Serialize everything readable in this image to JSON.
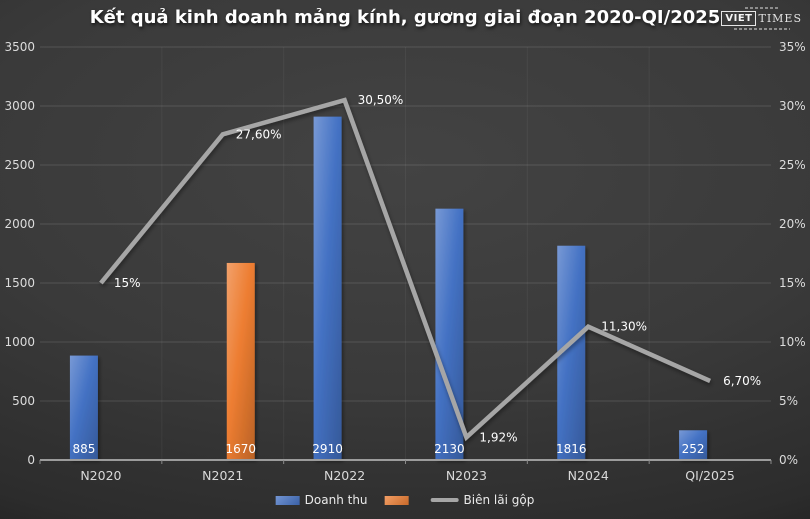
{
  "chart_data": {
    "type": "combo-bar-line",
    "title": "Kết quả kinh doanh mảng kính, gương giai đoạn 2020-QI/2025",
    "categories": [
      "N2020",
      "N2021",
      "N2022",
      "N2023",
      "N2024",
      "QI/2025"
    ],
    "series": [
      {
        "name": "Doanh thu",
        "type": "bar",
        "axis": "left",
        "color": "#4472c4",
        "values": [
          885,
          null,
          2910,
          2130,
          1816,
          252
        ],
        "labels": [
          "885",
          null,
          "2910",
          "2130",
          "1816",
          "252"
        ]
      },
      {
        "name": "",
        "type": "bar",
        "axis": "left",
        "color": "#ed7d31",
        "values": [
          null,
          1670,
          null,
          null,
          null,
          null
        ],
        "labels": [
          null,
          "1670",
          null,
          null,
          null,
          null
        ]
      },
      {
        "name": "Biên lãi gộp",
        "type": "line",
        "axis": "right",
        "color": "#a6a6a6",
        "values": [
          15,
          27.6,
          30.5,
          1.92,
          11.3,
          6.7
        ],
        "labels": [
          "15%",
          "27,60%",
          "30,50%",
          "1,92%",
          "11,30%",
          "6,70%"
        ]
      }
    ],
    "left_axis": {
      "min": 0,
      "max": 3500,
      "step": 500,
      "ticks": [
        "0",
        "500",
        "1000",
        "1500",
        "2000",
        "2500",
        "3000",
        "3500"
      ]
    },
    "right_axis": {
      "min": 0,
      "max": 35,
      "step": 5,
      "ticks": [
        "0%",
        "5%",
        "10%",
        "15%",
        "20%",
        "25%",
        "30%",
        "35%"
      ]
    },
    "grid": true,
    "legend_position": "bottom",
    "background_color": "#3a3a3a"
  },
  "logo": {
    "viet": "VIET",
    "times": "TIMES"
  }
}
